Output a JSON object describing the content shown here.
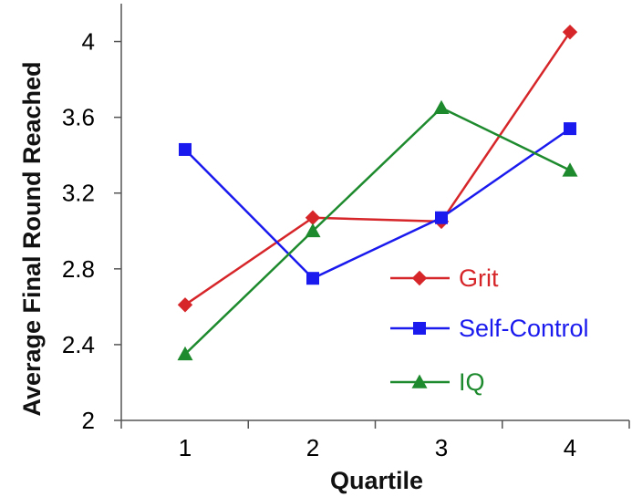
{
  "chart_data": {
    "type": "line",
    "title": "",
    "xlabel": "Quartile",
    "ylabel": "Average Final Round Reached",
    "categories": [
      "1",
      "2",
      "3",
      "4"
    ],
    "ylim": [
      2,
      4.2
    ],
    "yticks": [
      2,
      2.4,
      2.8,
      3.2,
      3.6,
      4
    ],
    "ytick_labels": [
      "2",
      "2.4",
      "2.8",
      "3.2",
      "3.6",
      "4"
    ],
    "grid": false,
    "legend_position": "center-right",
    "series": [
      {
        "name": "Grit",
        "color": "#d6262a",
        "marker": "diamond",
        "values": [
          2.61,
          3.07,
          3.05,
          4.05
        ]
      },
      {
        "name": "Self-Control",
        "color": "#1a1aee",
        "marker": "square",
        "values": [
          3.43,
          2.75,
          3.07,
          3.54
        ]
      },
      {
        "name": "IQ",
        "color": "#1e8a2e",
        "marker": "triangle",
        "values": [
          2.35,
          3.0,
          3.65,
          3.32
        ]
      }
    ]
  }
}
